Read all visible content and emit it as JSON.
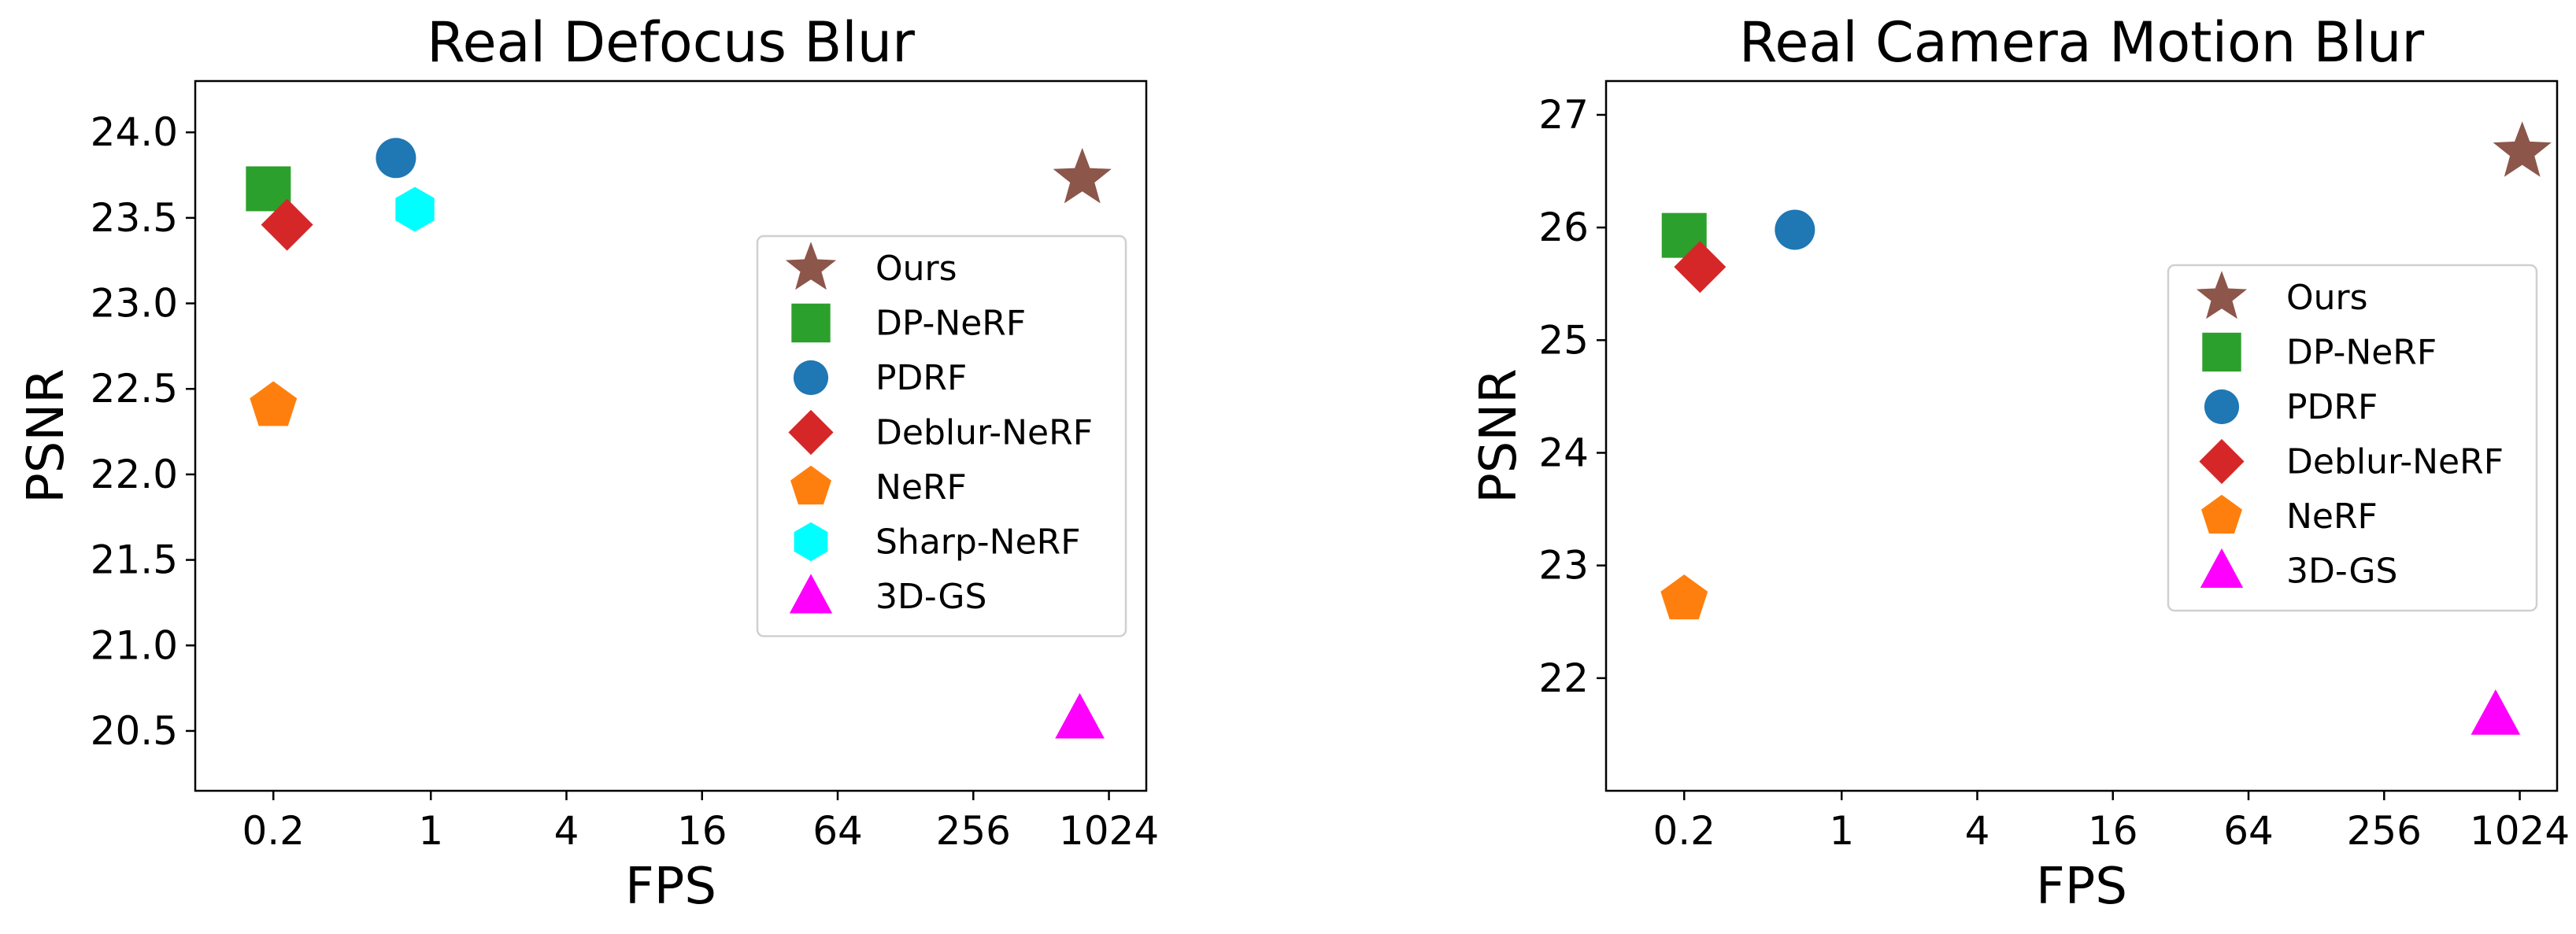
{
  "chart_data": [
    {
      "type": "scatter",
      "title": "Real Defocus Blur",
      "xlabel": "FPS",
      "ylabel": "PSNR",
      "x_scale": "log2",
      "xlim": [
        0.09,
        1500
      ],
      "x_ticks": [
        0.2,
        1,
        4,
        16,
        64,
        256,
        1024
      ],
      "x_tick_labels": [
        "0.2",
        "1",
        "4",
        "16",
        "64",
        "256",
        "1024"
      ],
      "ylim": [
        20.15,
        24.3
      ],
      "y_ticks": [
        20.5,
        21.0,
        21.5,
        22.0,
        22.5,
        23.0,
        23.5,
        24.0
      ],
      "y_tick_labels": [
        "20.5",
        "21.0",
        "21.5",
        "22.0",
        "22.5",
        "23.0",
        "23.5",
        "24.0"
      ],
      "grid": false,
      "legend_position": "right",
      "series": [
        {
          "name": "Ours",
          "marker": "star",
          "color": "#8c564b",
          "x": [
            780
          ],
          "y": [
            23.73
          ]
        },
        {
          "name": "DP-NeRF",
          "marker": "square",
          "color": "#2ca02c",
          "x": [
            0.19
          ],
          "y": [
            23.67
          ]
        },
        {
          "name": "PDRF",
          "marker": "circle",
          "color": "#1f77b4",
          "x": [
            0.7
          ],
          "y": [
            23.85
          ]
        },
        {
          "name": "Deblur-NeRF",
          "marker": "diamond",
          "color": "#d62728",
          "x": [
            0.23
          ],
          "y": [
            23.46
          ]
        },
        {
          "name": "NeRF",
          "marker": "pentagon",
          "color": "#ff7f0e",
          "x": [
            0.2
          ],
          "y": [
            22.4
          ]
        },
        {
          "name": "Sharp-NeRF",
          "marker": "hexagon",
          "color": "#00ffff",
          "x": [
            0.85
          ],
          "y": [
            23.55
          ]
        },
        {
          "name": "3D-GS",
          "marker": "triangle",
          "color": "#ff00ff",
          "x": [
            760
          ],
          "y": [
            20.57
          ]
        }
      ]
    },
    {
      "type": "scatter",
      "title": "Real Camera Motion Blur",
      "xlabel": "FPS",
      "ylabel": "PSNR",
      "x_scale": "log2",
      "xlim": [
        0.09,
        1500
      ],
      "x_ticks": [
        0.2,
        1,
        4,
        16,
        64,
        256,
        1024
      ],
      "x_tick_labels": [
        "0.2",
        "1",
        "4",
        "16",
        "64",
        "256",
        "1024"
      ],
      "ylim": [
        21.0,
        27.3
      ],
      "y_ticks": [
        22,
        23,
        24,
        25,
        26,
        27
      ],
      "y_tick_labels": [
        "22",
        "23",
        "24",
        "25",
        "26",
        "27"
      ],
      "grid": false,
      "legend_position": "right",
      "series": [
        {
          "name": "Ours",
          "marker": "star",
          "color": "#8c564b",
          "x": [
            1050
          ],
          "y": [
            26.67
          ]
        },
        {
          "name": "DP-NeRF",
          "marker": "square",
          "color": "#2ca02c",
          "x": [
            0.2
          ],
          "y": [
            25.93
          ]
        },
        {
          "name": "PDRF",
          "marker": "circle",
          "color": "#1f77b4",
          "x": [
            0.62
          ],
          "y": [
            25.98
          ]
        },
        {
          "name": "Deblur-NeRF",
          "marker": "diamond",
          "color": "#d62728",
          "x": [
            0.235
          ],
          "y": [
            25.65
          ]
        },
        {
          "name": "NeRF",
          "marker": "pentagon",
          "color": "#ff7f0e",
          "x": [
            0.2
          ],
          "y": [
            22.7
          ]
        },
        {
          "name": "3D-GS",
          "marker": "triangle",
          "color": "#ff00ff",
          "x": [
            800
          ],
          "y": [
            21.67
          ]
        }
      ]
    }
  ]
}
